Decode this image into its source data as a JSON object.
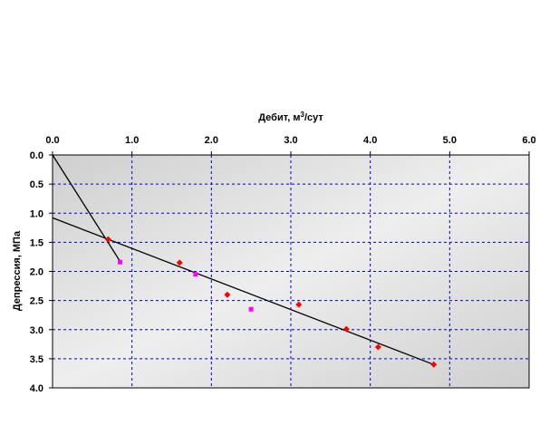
{
  "chart_data": {
    "type": "scatter",
    "xlabel": {
      "prefix": "Дебит, м",
      "sup": "3",
      "suffix": "/сут"
    },
    "ylabel": "Депрессия, МПа",
    "xlim": [
      0,
      6
    ],
    "ylim": [
      0,
      4
    ],
    "x_axis_position": "top",
    "y_axis_inverted": true,
    "x_ticks": [
      "0.0",
      "1.0",
      "2.0",
      "3.0",
      "4.0",
      "5.0",
      "6.0"
    ],
    "y_ticks": [
      "0.0",
      "0.5",
      "1.0",
      "1.5",
      "2.0",
      "2.5",
      "3.0",
      "3.5",
      "4.0"
    ],
    "grid": true,
    "series": [
      {
        "color": "#ff0000",
        "marker": "diamond",
        "points": [
          [
            0.7,
            1.45
          ],
          [
            1.6,
            1.85
          ],
          [
            2.2,
            2.4
          ],
          [
            3.1,
            2.57
          ],
          [
            3.7,
            2.99
          ],
          [
            4.1,
            3.3
          ],
          [
            4.8,
            3.6
          ]
        ]
      },
      {
        "color": "#ff00ff",
        "marker": "square",
        "points": [
          [
            0.85,
            1.84
          ],
          [
            1.8,
            2.05
          ],
          [
            2.5,
            2.65
          ]
        ]
      }
    ],
    "lines": [
      {
        "color": "#000000",
        "points": [
          [
            0,
            0
          ],
          [
            0.87,
            1.87
          ]
        ]
      },
      {
        "color": "#000000",
        "points": [
          [
            0,
            1.08
          ],
          [
            4.8,
            3.6
          ]
        ]
      }
    ]
  }
}
